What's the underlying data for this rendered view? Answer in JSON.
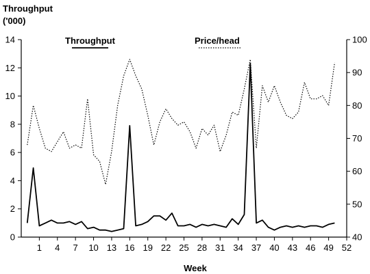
{
  "chart_data": {
    "type": "line",
    "title": "",
    "y_left_label_line1": "Throughput",
    "y_left_label_line2": "('000)",
    "xlabel": "Week",
    "xlim": [
      -2,
      52
    ],
    "ylim_left": [
      0,
      14
    ],
    "ylim_right": [
      40,
      100
    ],
    "x_ticks": [
      1,
      4,
      7,
      10,
      13,
      16,
      19,
      22,
      25,
      28,
      31,
      34,
      37,
      40,
      43,
      46,
      49,
      52
    ],
    "y_left_ticks": [
      0,
      2,
      4,
      6,
      8,
      10,
      12,
      14
    ],
    "y_right_ticks": [
      40,
      50,
      60,
      70,
      80,
      90,
      100
    ],
    "grid": false,
    "series": [
      {
        "name": "Throughput",
        "axis": "left",
        "style": "solid",
        "x": [
          -1,
          0,
          1,
          2,
          3,
          4,
          5,
          6,
          7,
          8,
          9,
          10,
          11,
          12,
          13,
          14,
          15,
          16,
          17,
          18,
          19,
          20,
          21,
          22,
          23,
          24,
          25,
          26,
          27,
          28,
          29,
          30,
          31,
          32,
          33,
          34,
          35,
          36,
          37,
          38,
          39,
          40,
          41,
          42,
          43,
          44,
          45,
          46,
          47,
          48,
          49,
          50
        ],
        "values": [
          1.0,
          4.9,
          0.8,
          1.0,
          1.2,
          1.0,
          1.0,
          1.1,
          0.9,
          1.1,
          0.6,
          0.7,
          0.5,
          0.5,
          0.4,
          0.5,
          0.6,
          7.9,
          0.8,
          0.9,
          1.1,
          1.5,
          1.5,
          1.2,
          1.7,
          0.8,
          0.8,
          0.9,
          0.7,
          0.9,
          0.8,
          0.9,
          0.8,
          0.7,
          1.3,
          0.9,
          1.6,
          12.3,
          1.0,
          1.2,
          0.7,
          0.5,
          0.7,
          0.8,
          0.7,
          0.8,
          0.7,
          0.8,
          0.8,
          0.7,
          0.9,
          1.0
        ]
      },
      {
        "name": "Price/head",
        "axis": "right",
        "style": "dotted",
        "x": [
          -1,
          0,
          1,
          2,
          3,
          4,
          5,
          6,
          7,
          8,
          9,
          10,
          11,
          12,
          13,
          14,
          15,
          16,
          17,
          18,
          19,
          20,
          21,
          22,
          23,
          24,
          25,
          26,
          27,
          28,
          29,
          30,
          31,
          32,
          33,
          34,
          35,
          36,
          37,
          38,
          39,
          40,
          41,
          42,
          43,
          44,
          45,
          46,
          47,
          48,
          49,
          50
        ],
        "values": [
          68,
          80,
          73,
          67,
          66,
          69,
          72,
          67,
          68,
          67,
          82,
          65,
          63,
          56,
          66,
          80,
          89,
          94,
          89,
          85,
          77,
          68,
          75,
          79,
          76,
          74,
          75,
          72,
          67,
          73,
          71,
          74,
          66,
          71,
          78,
          77,
          85,
          94,
          67,
          86,
          81,
          86,
          81,
          77,
          76,
          78,
          87,
          82,
          82,
          83,
          80,
          93
        ]
      }
    ]
  }
}
